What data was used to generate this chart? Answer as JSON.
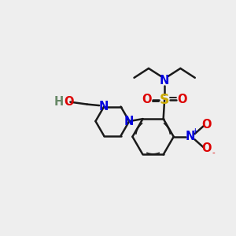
{
  "bg_color": "#eeeeee",
  "bond_color": "#1a1a1a",
  "bond_lw": 1.8,
  "inner_lw": 1.2,
  "colors": {
    "N": "#0000dd",
    "O": "#dd0000",
    "S": "#ccaa00",
    "H": "#668866"
  },
  "fs": 10.5,
  "dpi": 100,
  "figsize": [
    3.0,
    3.0
  ]
}
